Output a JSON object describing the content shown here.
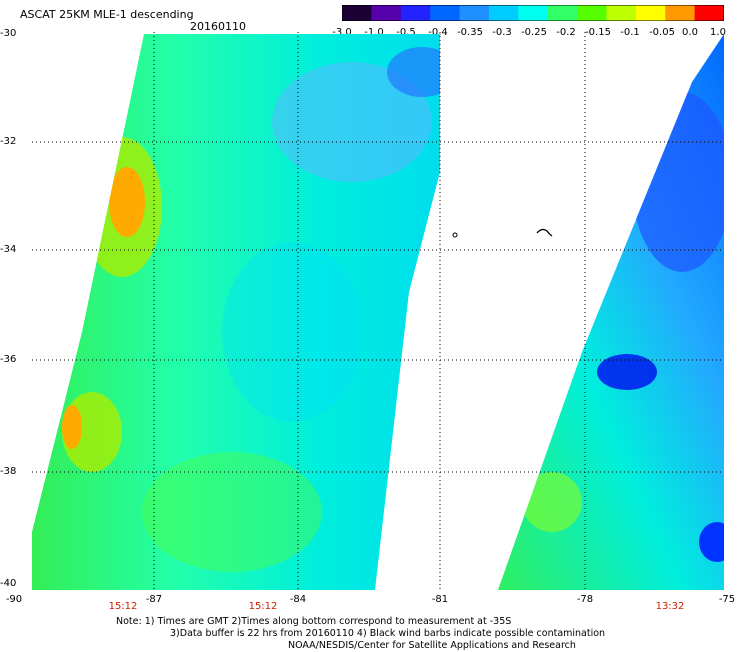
{
  "title": "ASCAT 25KM MLE-1 descending",
  "date": "20160110",
  "colorbar": {
    "labels": [
      "-3.0",
      "-1.0",
      "-0.5",
      "-0.4",
      "-0.35",
      "-0.3",
      "-0.25",
      "-0.2",
      "-0.15",
      "-0.1",
      "-0.05",
      "0.0",
      "1.0"
    ],
    "colors": [
      "#1a0033",
      "#5500aa",
      "#2222ff",
      "#0066ff",
      "#1e90ff",
      "#00ccff",
      "#00ffee",
      "#33ff66",
      "#55ff00",
      "#bbff00",
      "#ffff00",
      "#ff9900",
      "#ff0000"
    ]
  },
  "y_axis": {
    "labels": [
      "-30",
      "-32",
      "-34",
      "-36",
      "-38",
      "-40"
    ]
  },
  "x_axis": {
    "labels": [
      "-90",
      "-87",
      "-84",
      "-81",
      "-78",
      "-75"
    ]
  },
  "times": [
    "15:12",
    "15:12",
    "13:32"
  ],
  "note": {
    "line1": "Note:  1) Times are GMT  2)Times along bottom correspond to measurement at -35S",
    "line2": "3)Data buffer is 22 hrs from 20160110  4) Black wind barbs indicate possible contamination",
    "line3": "NOAA/NESDIS/Center for Satellite Applications and Research"
  }
}
